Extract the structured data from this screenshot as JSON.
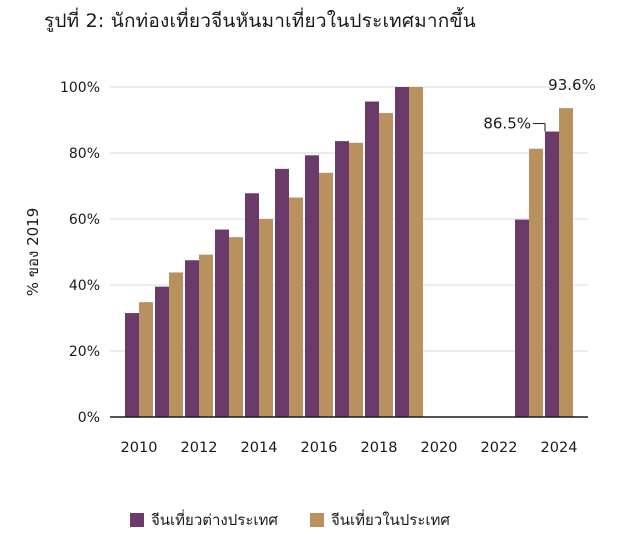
{
  "title": "รูปที่  2:  นักท่องเที่ยวจีนหันมาเที่ยวในประเทศมากขึ้น",
  "colors": {
    "outbound": "#6a3a6b",
    "domestic": "#b8915e",
    "grid": "#d9d9d9",
    "axis": "#1a1a1a"
  },
  "chart_data": {
    "type": "bar",
    "title": "รูปที่  2:  นักท่องเที่ยวจีนหันมาเที่ยวในประเทศมากขึ้น",
    "xlabel": "",
    "ylabel": "% ของ 2019",
    "ylim": [
      0,
      100
    ],
    "yticks": [
      "0%",
      "20%",
      "40%",
      "60%",
      "80%",
      "100%"
    ],
    "xticks": [
      "2010",
      "2012",
      "2014",
      "2016",
      "2018",
      "2020",
      "2022",
      "2024"
    ],
    "categories": [
      "2010",
      "2011",
      "2012",
      "2013",
      "2014",
      "2015",
      "2016",
      "2017",
      "2018",
      "2019",
      "2020",
      "2021",
      "2022",
      "2023",
      "2024"
    ],
    "series": [
      {
        "name": "จีนเที่ยวต่างประเทศ",
        "values": [
          31.5,
          39.5,
          47.5,
          56.8,
          67.8,
          75.2,
          79.3,
          83.6,
          95.6,
          100,
          null,
          null,
          null,
          59.8,
          86.5
        ]
      },
      {
        "name": "จีนเที่ยวในประเทศ",
        "values": [
          34.8,
          43.8,
          49.2,
          54.5,
          60.0,
          66.5,
          74.0,
          83.1,
          92.1,
          100,
          null,
          null,
          null,
          81.3,
          93.6
        ]
      }
    ],
    "annotations": [
      {
        "text": "86.5%",
        "category": "2024",
        "series": "จีนเที่ยวต่างประเทศ"
      },
      {
        "text": "93.6%",
        "category": "2024",
        "series": "จีนเที่ยวในประเทศ"
      }
    ],
    "grid": true,
    "legend": "bottom"
  },
  "legend": [
    {
      "label": "จีนเที่ยวต่างประเทศ",
      "color": "#6a3a6b"
    },
    {
      "label": "จีนเที่ยวในประเทศ",
      "color": "#b8915e"
    }
  ]
}
